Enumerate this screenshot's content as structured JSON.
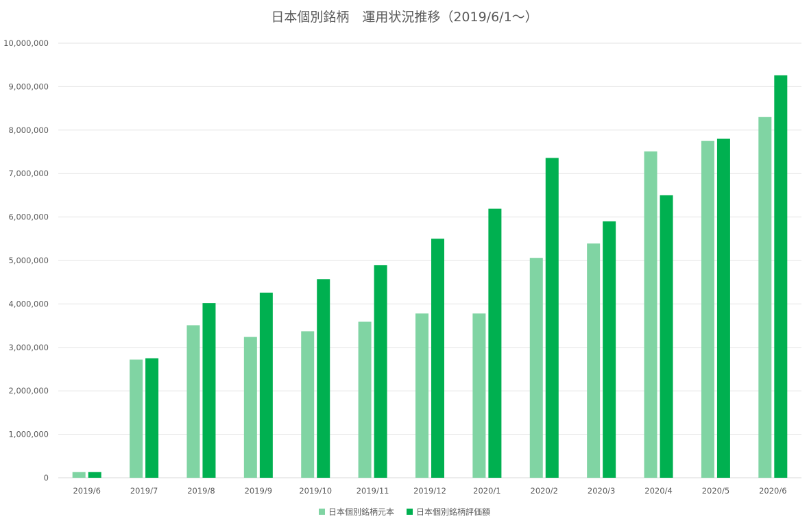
{
  "chart_data": {
    "type": "bar",
    "title": "日本個別銘柄　運用状況推移（2019/6/1～）",
    "xlabel": "",
    "ylabel": "",
    "categories": [
      "2019/6",
      "2019/7",
      "2019/8",
      "2019/9",
      "2019/10",
      "2019/11",
      "2019/12",
      "2020/1",
      "2020/2",
      "2020/3",
      "2020/4",
      "2020/5",
      "2020/6"
    ],
    "ylim": [
      0,
      10000000
    ],
    "ytick_labels": [
      "0",
      "1,000,000",
      "2,000,000",
      "3,000,000",
      "4,000,000",
      "5,000,000",
      "6,000,000",
      "7,000,000",
      "8,000,000",
      "9,000,000",
      "10,000,000"
    ],
    "grid": true,
    "legend_position": "bottom",
    "series": [
      {
        "name": "日本個別銘柄元本",
        "color": "#80d4a3",
        "values": [
          130000,
          2720000,
          3510000,
          3240000,
          3370000,
          3590000,
          3780000,
          3780000,
          5060000,
          5390000,
          7510000,
          7750000,
          8300000
        ]
      },
      {
        "name": "日本個別銘柄評価額",
        "color": "#00b050",
        "values": [
          130000,
          2750000,
          4020000,
          4260000,
          4570000,
          4890000,
          5500000,
          6190000,
          7360000,
          5900000,
          6500000,
          7800000,
          9260000
        ]
      }
    ]
  }
}
